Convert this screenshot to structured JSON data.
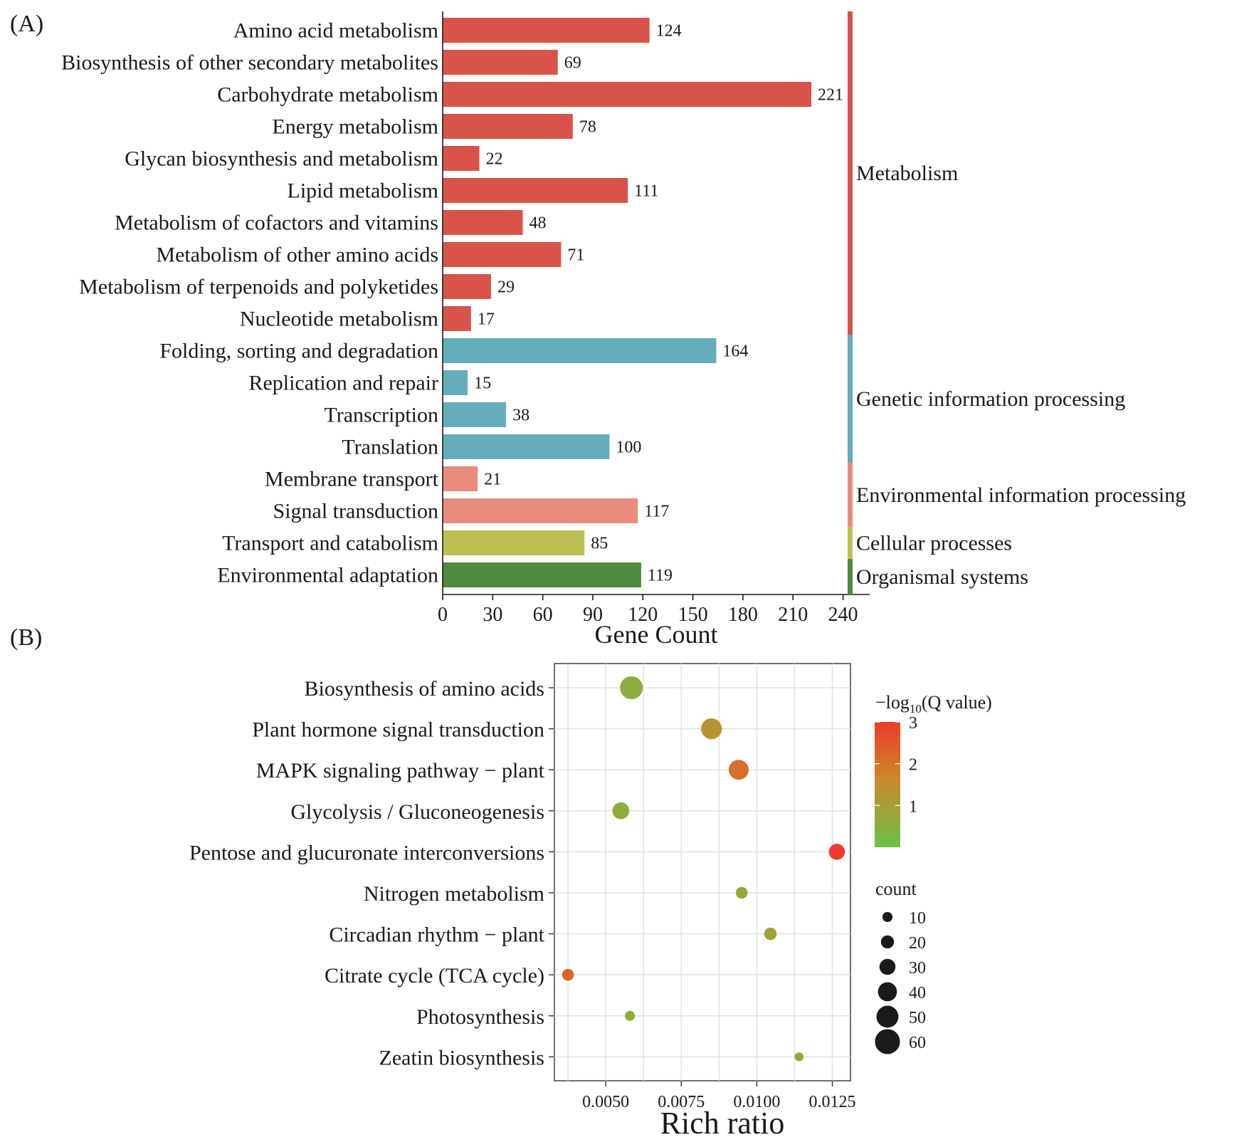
{
  "panel_a_label": "(A)",
  "panel_b_label": "(B)",
  "chart_data": [
    {
      "type": "bar",
      "orientation": "horizontal",
      "categories": [
        "Amino acid metabolism",
        "Biosynthesis of other secondary metabolites",
        "Carbohydrate metabolism",
        "Energy metabolism",
        "Glycan biosynthesis and metabolism",
        "Lipid metabolism",
        "Metabolism of cofactors and vitamins",
        "Metabolism of other amino acids",
        "Metabolism of terpenoids and polyketides",
        "Nucleotide metabolism",
        "Folding, sorting and degradation",
        "Replication and repair",
        "Transcription",
        "Translation",
        "Membrane transport",
        "Signal transduction",
        "Transport and catabolism",
        "Environmental adaptation"
      ],
      "values": [
        124,
        69,
        221,
        78,
        22,
        111,
        48,
        71,
        29,
        17,
        164,
        15,
        38,
        100,
        21,
        117,
        85,
        119
      ],
      "value_labels": [
        "124",
        "69",
        "221",
        "78",
        "22",
        "111",
        "48",
        "71",
        "29",
        "17",
        "164",
        "15",
        "38",
        "100",
        "21",
        "117",
        "85",
        "119"
      ],
      "group_index": [
        0,
        0,
        0,
        0,
        0,
        0,
        0,
        0,
        0,
        0,
        1,
        1,
        1,
        1,
        2,
        2,
        3,
        4
      ],
      "groups": [
        {
          "name": "Metabolism",
          "color": "#d9534a"
        },
        {
          "name": "Genetic information processing",
          "color": "#66adbb"
        },
        {
          "name": "Environmental information processing",
          "color": "#e98c7d"
        },
        {
          "name": "Cellular processes",
          "color": "#bcc052"
        },
        {
          "name": "Organismal systems",
          "color": "#4f8a3e"
        }
      ],
      "xlabel": "Gene Count",
      "xlim": [
        0,
        245
      ],
      "xticks": [
        0,
        30,
        60,
        90,
        120,
        150,
        180,
        210,
        240
      ],
      "xtick_labels": [
        "0",
        "30",
        "60",
        "90",
        "120",
        "150",
        "180",
        "210",
        "240"
      ]
    },
    {
      "type": "scatter",
      "categories": [
        "Biosynthesis of amino acids",
        "Plant hormone signal transduction",
        "MAPK signaling pathway − plant",
        "Glycolysis / Gluconeogenesis",
        "Pentose and glucuronate interconversions",
        "Nitrogen metabolism",
        "Circadian rhythm − plant",
        "Citrate cycle (TCA cycle)",
        "Photosynthesis",
        "Zeatin biosynthesis"
      ],
      "x": [
        0.00585,
        0.0085,
        0.0094,
        0.0055,
        0.01265,
        0.0095,
        0.01045,
        0.00375,
        0.0058,
        0.0114
      ],
      "count": [
        53,
        46,
        43,
        33,
        30,
        16,
        18,
        16,
        10,
        6
      ],
      "q_value_neglog10": [
        0.55,
        1.35,
        2.1,
        0.6,
        3.0,
        0.75,
        0.95,
        2.3,
        0.6,
        0.9
      ],
      "xlabel": "Rich ratio",
      "xlim": [
        0.0033,
        0.0131
      ],
      "xticks": [
        0.005,
        0.0075,
        0.01,
        0.0125
      ],
      "xtick_labels": [
        "0.0050",
        "0.0075",
        "0.0100",
        "0.0125"
      ],
      "grid": true,
      "color_legend": {
        "title": "−log",
        "title_sub": "10",
        "title_rest": "(Q value)",
        "range": [
          0,
          3
        ],
        "ticks": [
          1,
          2,
          3
        ],
        "tick_labels": [
          "1",
          "2",
          "3"
        ],
        "low_color": "#6cc04a",
        "mid_color": "#c9892a",
        "high_color": "#ee3a2a"
      },
      "size_legend": {
        "title": "count",
        "values": [
          10,
          20,
          30,
          40,
          50,
          60
        ],
        "labels": [
          "10",
          "20",
          "30",
          "40",
          "50",
          "60"
        ]
      }
    }
  ]
}
